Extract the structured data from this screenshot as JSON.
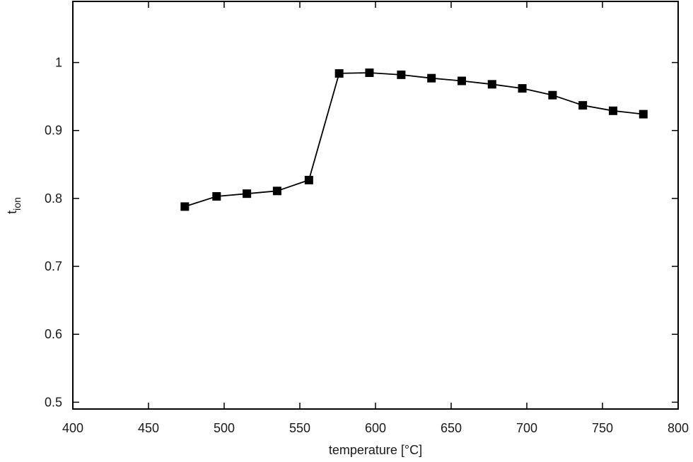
{
  "chart_data": {
    "type": "line",
    "title": "",
    "xlabel": "temperature [°C]",
    "ylabel": {
      "base": "t",
      "subscript": "ion"
    },
    "xlim": [
      400,
      800
    ],
    "ylim": [
      0.49,
      1.09
    ],
    "x_ticks": [
      400,
      450,
      500,
      550,
      600,
      650,
      700,
      750,
      800
    ],
    "y_ticks": [
      0.5,
      0.6,
      0.7,
      0.8,
      0.9,
      1
    ],
    "x_tick_labels": [
      "400",
      "450",
      "500",
      "550",
      "600",
      "650",
      "700",
      "750",
      "800"
    ],
    "y_tick_labels": [
      "0.5",
      "0.6",
      "0.7",
      "0.8",
      "0.9",
      "1"
    ],
    "grid": false,
    "legend": "none",
    "series": [
      {
        "marker": "filled-square",
        "color": "#000000",
        "x": [
          474,
          495,
          515,
          535,
          556,
          576,
          596,
          617,
          637,
          657,
          677,
          697,
          717,
          737,
          757,
          777
        ],
        "y": [
          0.788,
          0.803,
          0.807,
          0.811,
          0.827,
          0.984,
          0.985,
          0.982,
          0.977,
          0.973,
          0.968,
          0.962,
          0.952,
          0.937,
          0.929,
          0.924
        ]
      }
    ]
  }
}
